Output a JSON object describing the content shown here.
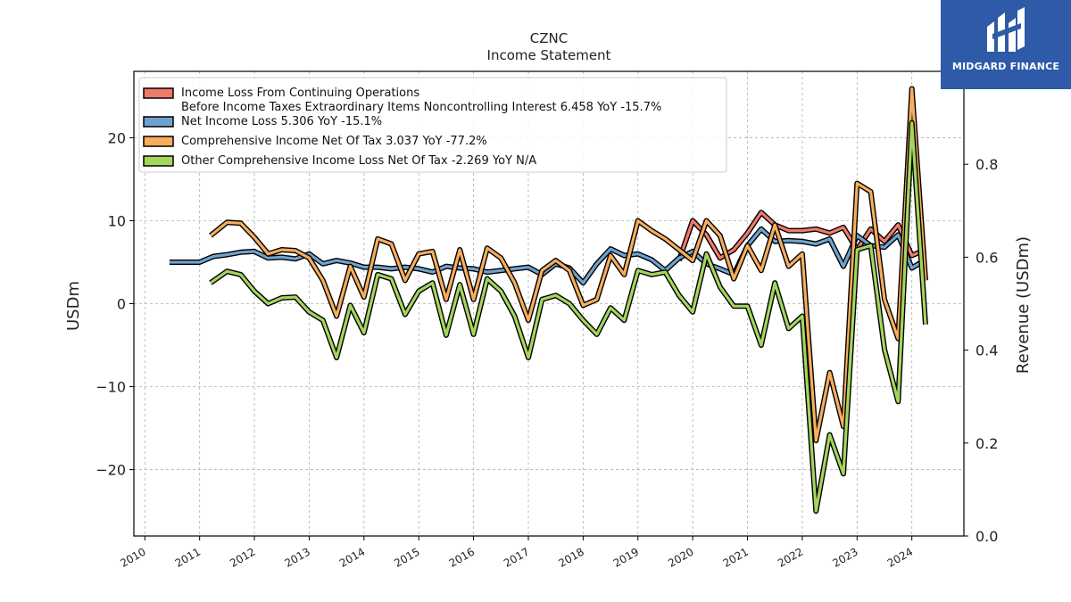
{
  "chart_data": {
    "type": "line",
    "title": "CZNC",
    "subtitle": "Income Statement",
    "ylabel": "USDm",
    "ylabel_right": "Revenue (USDm)",
    "ylim": [
      -28,
      28
    ],
    "ylim_right": [
      0,
      1.0
    ],
    "xlim": [
      2009.8,
      2024.95
    ],
    "x_ticks": [
      "2010",
      "2011",
      "2012",
      "2013",
      "2014",
      "2015",
      "2016",
      "2017",
      "2018",
      "2019",
      "2020",
      "2021",
      "2022",
      "2023",
      "2024"
    ],
    "y_ticks": [
      "−20",
      "−10",
      "0",
      "10",
      "20"
    ],
    "y_ticks_right": [
      "0.0",
      "0.2",
      "0.4",
      "0.6",
      "0.8"
    ],
    "grid": true,
    "legend_position": "upper-left",
    "series": [
      {
        "name": "Income Loss From Continuing Operations\nBefore Income Taxes Extraordinary Items Noncontrolling Interest  6.458 YoY -15.7%",
        "color": "#f07a6a",
        "points": [
          [
            2019.75,
            5.2
          ],
          [
            2020.0,
            10.0
          ],
          [
            2020.25,
            8.3
          ],
          [
            2020.5,
            5.5
          ],
          [
            2020.75,
            6.5
          ],
          [
            2021.0,
            8.5
          ],
          [
            2021.25,
            11.0
          ],
          [
            2021.5,
            9.5
          ],
          [
            2021.75,
            8.8
          ],
          [
            2022.0,
            8.8
          ],
          [
            2022.25,
            9.0
          ],
          [
            2022.5,
            8.5
          ],
          [
            2022.75,
            9.2
          ],
          [
            2023.0,
            6.5
          ],
          [
            2023.25,
            9.0
          ],
          [
            2023.5,
            7.5
          ],
          [
            2023.75,
            9.5
          ],
          [
            2024.0,
            5.8
          ],
          [
            2024.25,
            6.5
          ]
        ]
      },
      {
        "name": "Net Income Loss  5.306 YoY -15.1%",
        "color": "#6fa3cf",
        "points": [
          [
            2010.45,
            5.0
          ],
          [
            2010.75,
            5.0
          ],
          [
            2011.0,
            5.0
          ],
          [
            2011.25,
            5.7
          ],
          [
            2011.5,
            5.9
          ],
          [
            2011.75,
            6.2
          ],
          [
            2012.0,
            6.3
          ],
          [
            2012.25,
            5.5
          ],
          [
            2012.5,
            5.6
          ],
          [
            2012.75,
            5.4
          ],
          [
            2013.0,
            6.0
          ],
          [
            2013.25,
            4.8
          ],
          [
            2013.5,
            5.2
          ],
          [
            2013.75,
            4.9
          ],
          [
            2014.0,
            4.4
          ],
          [
            2014.25,
            4.4
          ],
          [
            2014.5,
            4.2
          ],
          [
            2014.75,
            4.4
          ],
          [
            2015.0,
            4.2
          ],
          [
            2015.25,
            3.8
          ],
          [
            2015.5,
            4.5
          ],
          [
            2015.75,
            4.3
          ],
          [
            2016.0,
            4.2
          ],
          [
            2016.25,
            3.8
          ],
          [
            2016.5,
            4.0
          ],
          [
            2016.75,
            4.2
          ],
          [
            2017.0,
            4.4
          ],
          [
            2017.25,
            3.5
          ],
          [
            2017.5,
            4.8
          ],
          [
            2017.75,
            4.3
          ],
          [
            2018.0,
            2.5
          ],
          [
            2018.25,
            4.8
          ],
          [
            2018.5,
            6.6
          ],
          [
            2018.75,
            5.8
          ],
          [
            2019.0,
            6.0
          ],
          [
            2019.25,
            5.3
          ],
          [
            2019.5,
            4.0
          ],
          [
            2019.75,
            5.5
          ],
          [
            2020.0,
            6.3
          ],
          [
            2020.25,
            4.8
          ],
          [
            2020.5,
            4.2
          ],
          [
            2020.75,
            3.5
          ],
          [
            2021.0,
            7.0
          ],
          [
            2021.25,
            9.0
          ],
          [
            2021.5,
            7.5
          ],
          [
            2021.75,
            7.6
          ],
          [
            2022.0,
            7.5
          ],
          [
            2022.25,
            7.2
          ],
          [
            2022.5,
            7.8
          ],
          [
            2022.75,
            4.5
          ],
          [
            2023.0,
            8.2
          ],
          [
            2023.25,
            7.0
          ],
          [
            2023.5,
            6.8
          ],
          [
            2023.75,
            8.3
          ],
          [
            2024.0,
            4.3
          ],
          [
            2024.25,
            5.3
          ]
        ]
      },
      {
        "name": "Comprehensive Income Net Of Tax  3.037 YoY -77.2%",
        "color": "#f7ad5c",
        "points": [
          [
            2011.2,
            8.2
          ],
          [
            2011.5,
            9.8
          ],
          [
            2011.75,
            9.7
          ],
          [
            2012.0,
            8.0
          ],
          [
            2012.25,
            6.0
          ],
          [
            2012.5,
            6.5
          ],
          [
            2012.75,
            6.4
          ],
          [
            2013.0,
            5.5
          ],
          [
            2013.25,
            2.8
          ],
          [
            2013.5,
            -1.5
          ],
          [
            2013.75,
            4.5
          ],
          [
            2014.0,
            0.8
          ],
          [
            2014.25,
            7.8
          ],
          [
            2014.5,
            7.2
          ],
          [
            2014.75,
            2.8
          ],
          [
            2015.0,
            6.0
          ],
          [
            2015.25,
            6.3
          ],
          [
            2015.5,
            0.5
          ],
          [
            2015.75,
            6.5
          ],
          [
            2016.0,
            0.5
          ],
          [
            2016.25,
            6.7
          ],
          [
            2016.5,
            5.5
          ],
          [
            2016.75,
            2.5
          ],
          [
            2017.0,
            -2.0
          ],
          [
            2017.25,
            4.0
          ],
          [
            2017.5,
            5.2
          ],
          [
            2017.75,
            4.0
          ],
          [
            2018.0,
            -0.2
          ],
          [
            2018.25,
            0.5
          ],
          [
            2018.5,
            5.8
          ],
          [
            2018.75,
            3.5
          ],
          [
            2019.0,
            10.0
          ],
          [
            2019.25,
            8.8
          ],
          [
            2019.5,
            7.8
          ],
          [
            2019.75,
            6.5
          ],
          [
            2020.0,
            5.2
          ],
          [
            2020.25,
            10.0
          ],
          [
            2020.5,
            8.2
          ],
          [
            2020.75,
            3.0
          ],
          [
            2021.0,
            7.0
          ],
          [
            2021.25,
            4.0
          ],
          [
            2021.5,
            9.5
          ],
          [
            2021.75,
            4.5
          ],
          [
            2022.0,
            6.0
          ],
          [
            2022.25,
            -16.5
          ],
          [
            2022.5,
            -8.3
          ],
          [
            2022.75,
            -14.8
          ],
          [
            2023.0,
            14.5
          ],
          [
            2023.25,
            13.5
          ],
          [
            2023.5,
            0.5
          ],
          [
            2023.75,
            -4.2
          ],
          [
            2024.0,
            25.9
          ],
          [
            2024.25,
            2.8
          ]
        ]
      },
      {
        "name": "Other Comprehensive Income Loss Net Of Tax  -2.269 YoY N/A",
        "color": "#a4d65e",
        "points": [
          [
            2011.2,
            2.5
          ],
          [
            2011.5,
            3.9
          ],
          [
            2011.75,
            3.5
          ],
          [
            2012.0,
            1.5
          ],
          [
            2012.25,
            0.0
          ],
          [
            2012.5,
            0.7
          ],
          [
            2012.75,
            0.8
          ],
          [
            2013.0,
            -1.0
          ],
          [
            2013.25,
            -2.0
          ],
          [
            2013.5,
            -6.5
          ],
          [
            2013.75,
            -0.2
          ],
          [
            2014.0,
            -3.5
          ],
          [
            2014.25,
            3.5
          ],
          [
            2014.5,
            3.0
          ],
          [
            2014.75,
            -1.3
          ],
          [
            2015.0,
            1.5
          ],
          [
            2015.25,
            2.5
          ],
          [
            2015.5,
            -3.8
          ],
          [
            2015.75,
            2.3
          ],
          [
            2016.0,
            -3.7
          ],
          [
            2016.25,
            3.0
          ],
          [
            2016.5,
            1.5
          ],
          [
            2016.75,
            -1.5
          ],
          [
            2017.0,
            -6.5
          ],
          [
            2017.25,
            0.5
          ],
          [
            2017.5,
            1.0
          ],
          [
            2017.75,
            0.0
          ],
          [
            2018.0,
            -2.0
          ],
          [
            2018.25,
            -3.7
          ],
          [
            2018.5,
            -0.5
          ],
          [
            2018.75,
            -2.0
          ],
          [
            2019.0,
            4.0
          ],
          [
            2019.25,
            3.5
          ],
          [
            2019.5,
            3.8
          ],
          [
            2019.75,
            1.0
          ],
          [
            2020.0,
            -1.0
          ],
          [
            2020.25,
            6.0
          ],
          [
            2020.5,
            2.0
          ],
          [
            2020.75,
            -0.3
          ],
          [
            2021.0,
            -0.3
          ],
          [
            2021.25,
            -5.0
          ],
          [
            2021.5,
            2.5
          ],
          [
            2021.75,
            -3.0
          ],
          [
            2022.0,
            -1.5
          ],
          [
            2022.25,
            -25.0
          ],
          [
            2022.5,
            -15.8
          ],
          [
            2022.75,
            -20.5
          ],
          [
            2023.0,
            6.5
          ],
          [
            2023.25,
            7.0
          ],
          [
            2023.5,
            -5.5
          ],
          [
            2023.75,
            -11.8
          ],
          [
            2024.0,
            21.8
          ],
          [
            2024.25,
            -2.5
          ]
        ]
      }
    ]
  },
  "logo": {
    "text": "MIDGARD FINANCE",
    "color": "#2e5aa8"
  }
}
